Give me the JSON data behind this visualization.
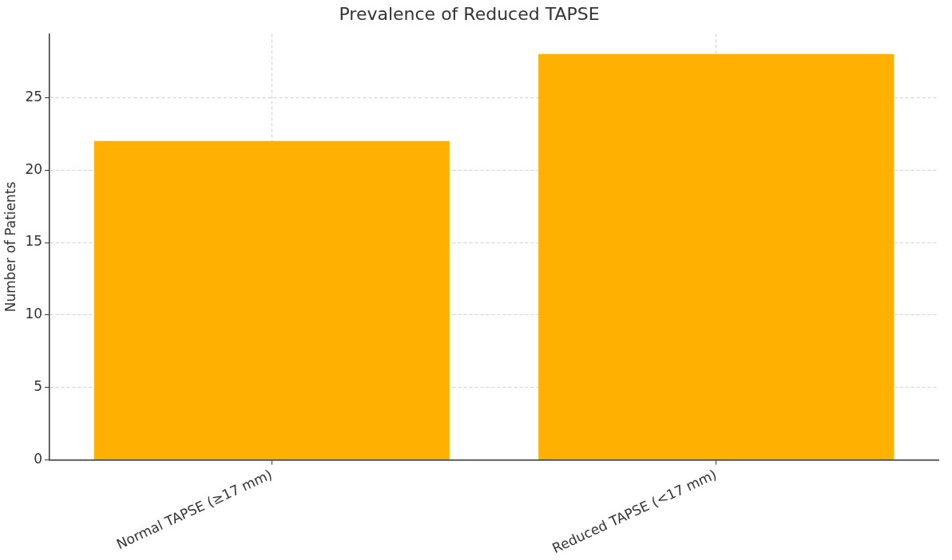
{
  "chart_data": {
    "type": "bar",
    "title": "Prevalence of Reduced TAPSE",
    "ylabel": "Number of Patients",
    "categories": [
      "Normal TAPSE (≥17 mm)",
      "Reduced TAPSE (<17 mm)"
    ],
    "values": [
      22,
      28
    ],
    "color": "#ffb000",
    "ylim": [
      0,
      29.4
    ],
    "yticks": [
      0,
      5,
      10,
      15,
      20,
      25
    ],
    "grid": true
  }
}
